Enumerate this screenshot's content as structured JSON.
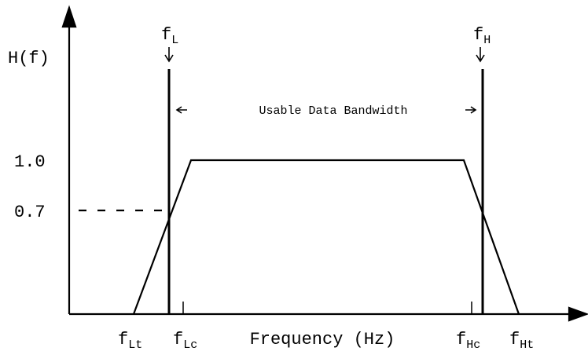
{
  "axis": {
    "y_label": "H(f)",
    "x_label": "Frequency (Hz)",
    "y_ticks": [
      "1.0",
      "0.7"
    ]
  },
  "markers": [
    {
      "base": "f",
      "sub": "L"
    },
    {
      "base": "f",
      "sub": "H"
    }
  ],
  "band_label": "Usable Data Bandwidth",
  "x_ticks": [
    {
      "base": "f",
      "sub": "Lt"
    },
    {
      "base": "f",
      "sub": "Lc"
    },
    {
      "base": "f",
      "sub": "Hc"
    },
    {
      "base": "f",
      "sub": "Ht"
    }
  ]
}
